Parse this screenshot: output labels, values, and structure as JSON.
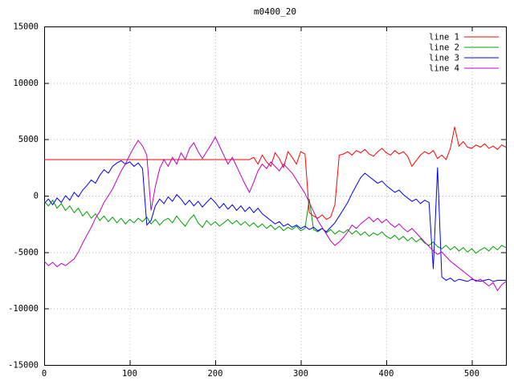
{
  "title": "m0400_20",
  "chart_data": {
    "type": "line",
    "title": "m0400_20",
    "xlabel": "",
    "ylabel": "",
    "xlim": [
      0,
      540
    ],
    "ylim": [
      -15000,
      15000
    ],
    "x_ticks": [
      0,
      100,
      200,
      300,
      400,
      500
    ],
    "y_ticks": [
      -15000,
      -10000,
      -5000,
      0,
      5000,
      10000,
      15000
    ],
    "grid": true,
    "legend_position": "top-right",
    "colors": {
      "background": "#ffffff",
      "border": "#000000",
      "grid": "#b8b8b8",
      "text": "#000000"
    },
    "x_start": 0,
    "x_step": 5,
    "series": [
      {
        "name": "line 1",
        "color": "#ff0000",
        "values": [
          3200,
          3200,
          3200,
          3200,
          3200,
          3200,
          3200,
          3200,
          3200,
          3200,
          3200,
          3200,
          3200,
          3200,
          3200,
          3200,
          3200,
          3200,
          3200,
          3200,
          3200,
          3200,
          3200,
          3200,
          3200,
          3200,
          3200,
          3200,
          3200,
          3200,
          3200,
          3200,
          3200,
          3200,
          3200,
          3200,
          3200,
          3200,
          3200,
          3200,
          3200,
          3200,
          3200,
          3200,
          3200,
          3200,
          3200,
          3200,
          3200,
          3400,
          2800,
          3600,
          3000,
          2600,
          3800,
          3300,
          2500,
          3900,
          3400,
          2800,
          3900,
          3700,
          -1500,
          -1800,
          -2000,
          -1700,
          -2100,
          -1900,
          -800,
          3600,
          3700,
          3900,
          3600,
          4000,
          3800,
          4100,
          3700,
          3500,
          3900,
          4200,
          3800,
          3600,
          4000,
          3700,
          3900,
          3500,
          2600,
          3100,
          3600,
          3900,
          3700,
          4000,
          3300,
          3600,
          3200,
          4200,
          6100,
          4400,
          4800,
          4300,
          4200,
          4500,
          4300,
          4600,
          4200,
          4400,
          4100,
          4500,
          4300
        ]
      },
      {
        "name": "line 2",
        "color": "#00a000",
        "values": [
          -500,
          -900,
          -400,
          -1100,
          -700,
          -1300,
          -900,
          -1500,
          -1100,
          -1800,
          -1400,
          -2000,
          -1600,
          -2200,
          -1800,
          -2300,
          -1900,
          -2400,
          -2000,
          -2500,
          -2100,
          -2400,
          -2000,
          -2300,
          -1900,
          -2500,
          -2100,
          -2600,
          -2200,
          -2000,
          -2400,
          -1800,
          -2300,
          -2700,
          -2100,
          -1700,
          -2400,
          -2800,
          -2200,
          -2600,
          -2300,
          -2700,
          -2400,
          -2100,
          -2500,
          -2200,
          -2600,
          -2300,
          -2700,
          -2400,
          -2800,
          -2500,
          -2900,
          -2600,
          -3000,
          -2700,
          -3100,
          -2800,
          -3000,
          -2700,
          -3100,
          -2900,
          -300,
          -3000,
          -3200,
          -2900,
          -3300,
          -3000,
          -3400,
          -3100,
          -3300,
          -3000,
          -3400,
          -3100,
          -3500,
          -3200,
          -3600,
          -3300,
          -3500,
          -3200,
          -3600,
          -3800,
          -3500,
          -3900,
          -3600,
          -4000,
          -3700,
          -4100,
          -3800,
          -4200,
          -4400,
          -4100,
          -4500,
          -4700,
          -4400,
          -4800,
          -4500,
          -4900,
          -4600,
          -5000,
          -4700,
          -5100,
          -4800,
          -4600,
          -4900,
          -4500,
          -4800,
          -4400,
          -4600
        ]
      },
      {
        "name": "line 3",
        "color": "#0000ff",
        "values": [
          -700,
          -300,
          -800,
          -200,
          -600,
          0,
          -400,
          300,
          -100,
          500,
          900,
          1400,
          1100,
          1800,
          2300,
          2000,
          2600,
          2900,
          3100,
          2800,
          3000,
          2600,
          2900,
          2400,
          -2600,
          -2200,
          -900,
          -300,
          -700,
          -100,
          -500,
          100,
          -300,
          -800,
          -400,
          -900,
          -500,
          -1000,
          -600,
          -200,
          -600,
          -1100,
          -700,
          -1200,
          -800,
          -1300,
          -900,
          -1400,
          -1000,
          -1500,
          -1100,
          -1600,
          -1900,
          -2200,
          -2500,
          -2300,
          -2700,
          -2500,
          -2800,
          -2600,
          -2900,
          -2700,
          -3000,
          -2800,
          -3100,
          -2900,
          -3200,
          -2800,
          -2400,
          -1800,
          -1200,
          -600,
          200,
          900,
          1600,
          2000,
          1700,
          1400,
          1100,
          1300,
          900,
          600,
          300,
          500,
          100,
          -200,
          -500,
          -300,
          -700,
          -400,
          -600,
          -6500,
          2500,
          -7200,
          -7500,
          -7300,
          -7600,
          -7400,
          -7500,
          -7600,
          -7400,
          -7500,
          -7600,
          -7500,
          -7400,
          -7600,
          -7500,
          -7500,
          -7500
        ]
      },
      {
        "name": "line 4",
        "color": "#c000c0",
        "values": [
          -5800,
          -6200,
          -5900,
          -6300,
          -6000,
          -6200,
          -5900,
          -5600,
          -5000,
          -4200,
          -3500,
          -2800,
          -2000,
          -1400,
          -600,
          0,
          600,
          1400,
          2200,
          2800,
          3600,
          4300,
          4900,
          4400,
          3600,
          -1300,
          800,
          2400,
          3200,
          2600,
          3400,
          2800,
          3800,
          3200,
          4200,
          4700,
          3900,
          3300,
          3900,
          4500,
          5200,
          4400,
          3600,
          2800,
          3400,
          2600,
          1800,
          1000,
          300,
          1200,
          2200,
          2800,
          2400,
          3000,
          2600,
          2200,
          2800,
          2400,
          2000,
          1400,
          800,
          200,
          -600,
          -1400,
          -2200,
          -2800,
          -3400,
          -4000,
          -4400,
          -4100,
          -3700,
          -3200,
          -2600,
          -2900,
          -2500,
          -2200,
          -1900,
          -2300,
          -2000,
          -2400,
          -2100,
          -2500,
          -2800,
          -2500,
          -2900,
          -3200,
          -2900,
          -3300,
          -3700,
          -4100,
          -4500,
          -4900,
          -5200,
          -5000,
          -5400,
          -5800,
          -6100,
          -6400,
          -6700,
          -7000,
          -7300,
          -7600,
          -7400,
          -7700,
          -8000,
          -7700,
          -8400,
          -7900,
          -7600
        ]
      }
    ]
  }
}
